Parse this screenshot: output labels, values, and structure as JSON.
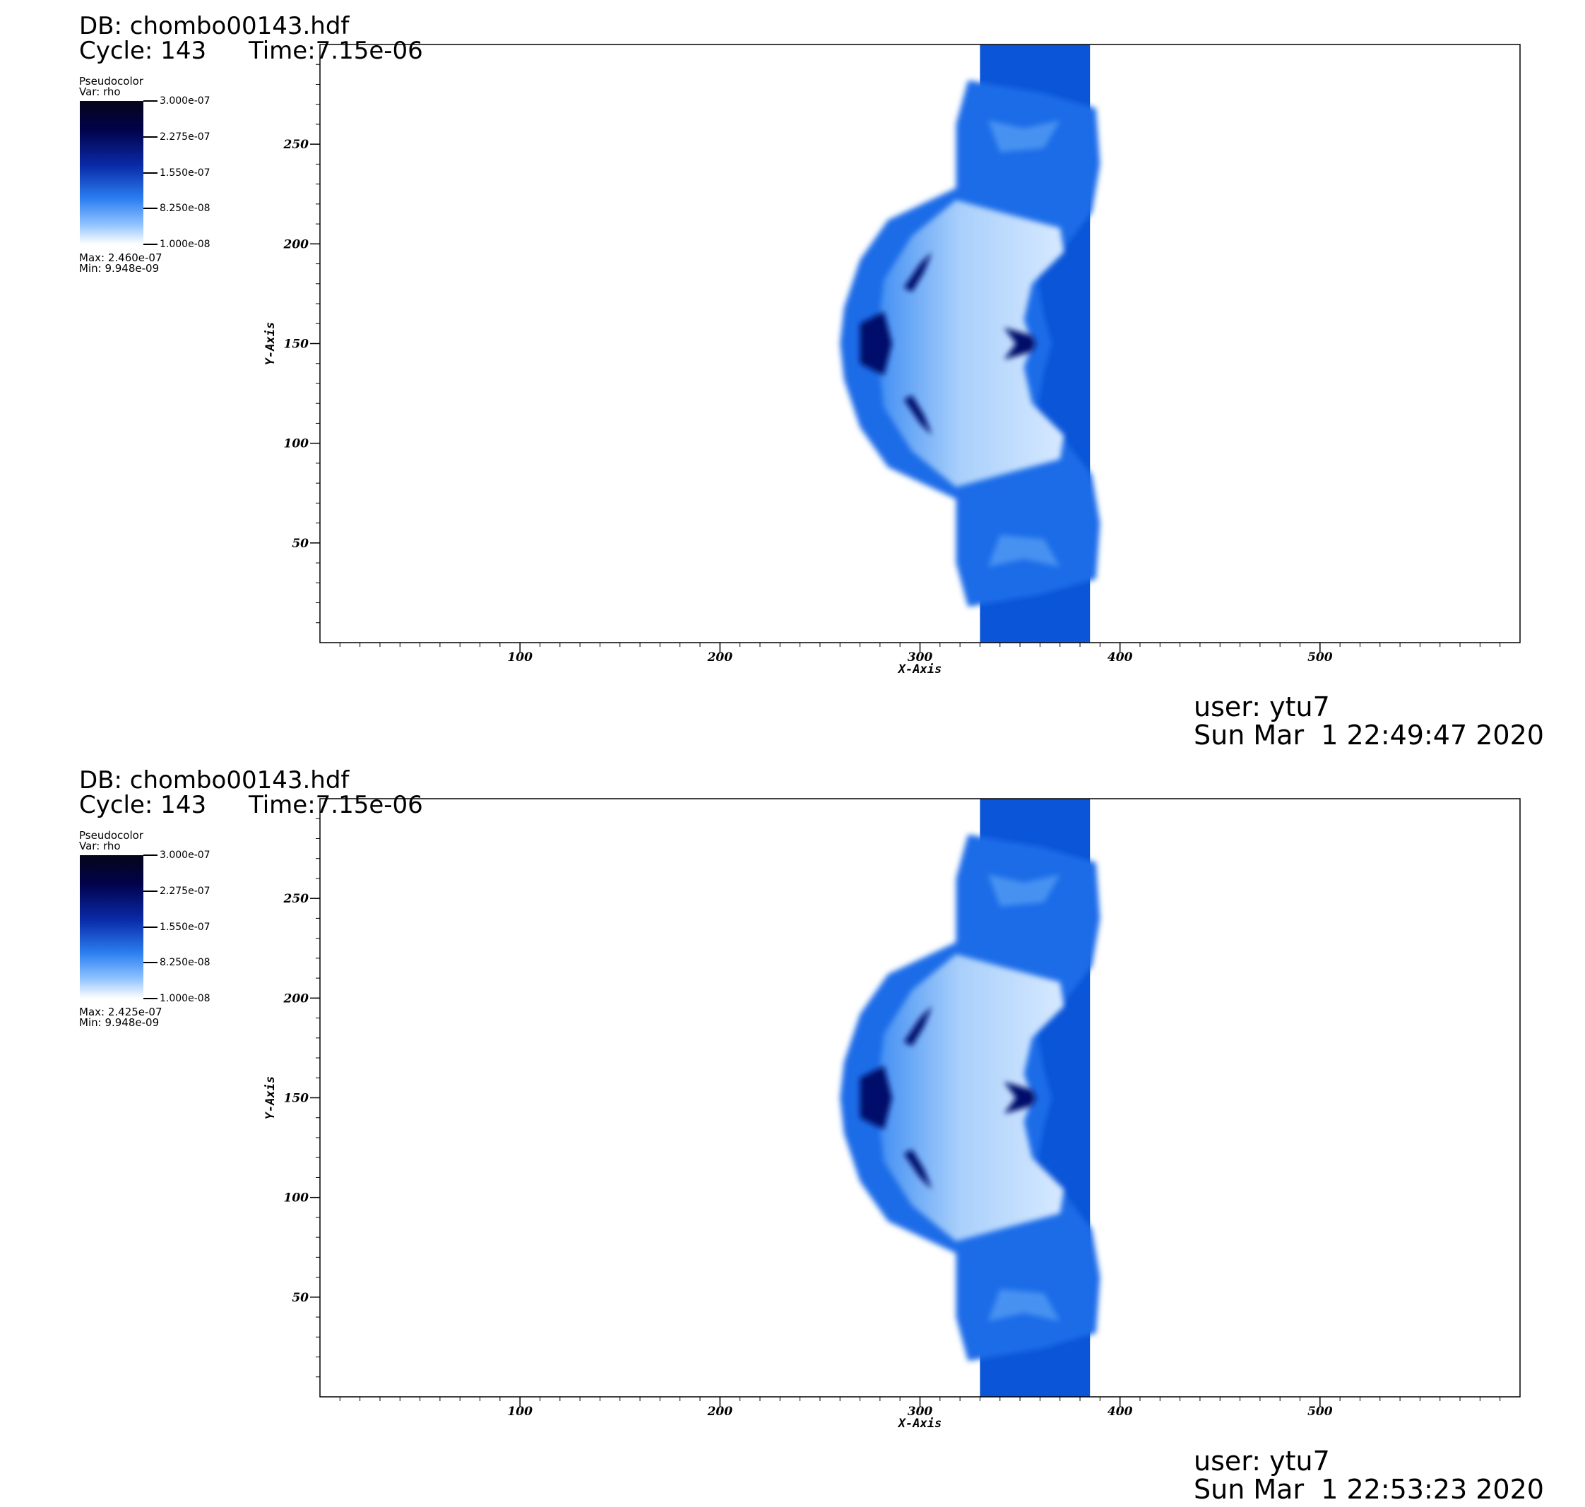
{
  "panels": [
    {
      "db": "DB: chombo00143.hdf",
      "cycle": "Cycle: 143",
      "time": "Time:7.15e-06",
      "legend": {
        "plot": "Pseudocolor",
        "var": "Var: rho",
        "levels": [
          "3.000e-07",
          "2.275e-07",
          "1.550e-07",
          "8.250e-08",
          "1.000e-08"
        ],
        "max": "Max: 2.460e-07",
        "min": "Min: 9.948e-09"
      },
      "user": "user: ytu7",
      "date": "Sun Mar  1 22:49:47 2020"
    },
    {
      "db": "DB: chombo00143.hdf",
      "cycle": "Cycle: 143",
      "time": "Time:7.15e-06",
      "legend": {
        "plot": "Pseudocolor",
        "var": "Var: rho",
        "levels": [
          "3.000e-07",
          "2.275e-07",
          "1.550e-07",
          "8.250e-08",
          "1.000e-08"
        ],
        "max": "Max: 2.425e-07",
        "min": "Min: 9.948e-09"
      },
      "user": "user: ytu7",
      "date": "Sun Mar  1 22:53:23 2020"
    }
  ],
  "chart_data": [
    {
      "type": "heatmap",
      "variable": "rho",
      "xlabel": "X-Axis",
      "ylabel": "Y-Axis",
      "xlim": [
        0,
        600
      ],
      "ylim": [
        0,
        300
      ],
      "xticks": [
        100,
        200,
        300,
        400,
        500
      ],
      "yticks": [
        50,
        100,
        150,
        200,
        250
      ],
      "colorscale": [
        "#ffffff",
        "#8ec2ff",
        "#2a7ef0",
        "#0a2aa8",
        "#02024a",
        "#05051a"
      ],
      "clim": [
        1e-08,
        3e-07
      ],
      "data_max": 2.46e-07,
      "data_min": 9.948e-09
    },
    {
      "type": "heatmap",
      "variable": "rho",
      "xlabel": "X-Axis",
      "ylabel": "Y-Axis",
      "xlim": [
        0,
        600
      ],
      "ylim": [
        0,
        300
      ],
      "xticks": [
        100,
        200,
        300,
        400,
        500
      ],
      "yticks": [
        50,
        100,
        150,
        200,
        250
      ],
      "colorscale": [
        "#ffffff",
        "#8ec2ff",
        "#2a7ef0",
        "#0a2aa8",
        "#02024a",
        "#05051a"
      ],
      "clim": [
        1e-08,
        3e-07
      ],
      "data_max": 2.425e-07,
      "data_min": 9.948e-09
    }
  ]
}
